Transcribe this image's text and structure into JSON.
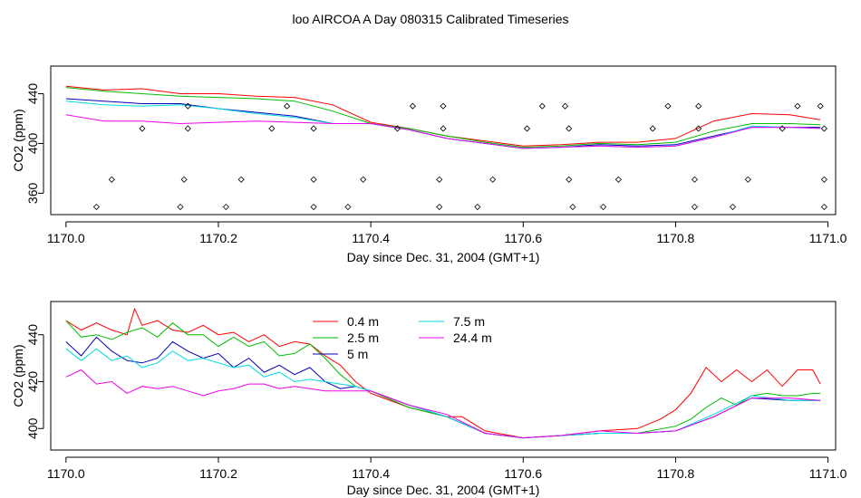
{
  "figure": {
    "title": "loo AIRCOA A  Day 080315  Calibrated Timeseries"
  },
  "chart_data": [
    {
      "type": "line",
      "xlabel": "Day since Dec. 31, 2004 (GMT+1)",
      "ylabel": "CO2 (ppm)",
      "xlim": [
        1169.98,
        1171.01
      ],
      "ylim": [
        345,
        460
      ],
      "xticks": [
        1170.0,
        1170.2,
        1170.4,
        1170.6,
        1170.8,
        1171.0
      ],
      "xtick_labels": [
        "1170.0",
        "1170.2",
        "1170.4",
        "1170.6",
        "1170.8",
        "1171.0"
      ],
      "yticks": [
        360,
        400,
        440
      ],
      "ytick_labels": [
        "360",
        "400",
        "440"
      ],
      "grid": false,
      "series": [
        {
          "color": "#ff0000",
          "x": [
            1170.0,
            1170.05,
            1170.1,
            1170.15,
            1170.2,
            1170.25,
            1170.3,
            1170.35,
            1170.4,
            1170.45,
            1170.5,
            1170.55,
            1170.6,
            1170.65,
            1170.7,
            1170.75,
            1170.8,
            1170.85,
            1170.9,
            1170.95,
            1170.99
          ],
          "y": [
            446,
            443,
            444,
            440,
            440,
            438,
            437,
            431,
            417,
            412,
            406,
            402,
            398,
            399,
            401,
            401,
            404,
            418,
            424,
            423,
            419
          ]
        },
        {
          "color": "#00bb00",
          "x": [
            1170.0,
            1170.05,
            1170.1,
            1170.15,
            1170.2,
            1170.25,
            1170.3,
            1170.35,
            1170.4,
            1170.45,
            1170.5,
            1170.55,
            1170.6,
            1170.65,
            1170.7,
            1170.75,
            1170.8,
            1170.85,
            1170.9,
            1170.95,
            1170.99
          ],
          "y": [
            445,
            442,
            440,
            438,
            437,
            436,
            434,
            426,
            416,
            412,
            406,
            401,
            397,
            398,
            400,
            399,
            401,
            410,
            416,
            416,
            415
          ]
        },
        {
          "color": "#0000bb",
          "x": [
            1170.0,
            1170.05,
            1170.1,
            1170.15,
            1170.2,
            1170.25,
            1170.3,
            1170.35,
            1170.4,
            1170.45,
            1170.5,
            1170.55,
            1170.6,
            1170.65,
            1170.7,
            1170.75,
            1170.8,
            1170.85,
            1170.9,
            1170.95,
            1170.99
          ],
          "y": [
            436,
            434,
            432,
            432,
            428,
            425,
            422,
            416,
            416,
            411,
            404,
            400,
            396,
            397,
            399,
            398,
            399,
            406,
            413,
            413,
            413
          ]
        },
        {
          "color": "#00dddd",
          "x": [
            1170.0,
            1170.05,
            1170.1,
            1170.15,
            1170.2,
            1170.25,
            1170.3,
            1170.35,
            1170.4,
            1170.45,
            1170.5,
            1170.55,
            1170.6,
            1170.65,
            1170.7,
            1170.75,
            1170.8,
            1170.85,
            1170.9,
            1170.95,
            1170.99
          ],
          "y": [
            434,
            431,
            430,
            431,
            428,
            424,
            421,
            416,
            416,
            411,
            404,
            400,
            396,
            397,
            398,
            397,
            398,
            405,
            414,
            413,
            412
          ]
        },
        {
          "color": "#ee00ee",
          "x": [
            1170.0,
            1170.05,
            1170.1,
            1170.15,
            1170.2,
            1170.25,
            1170.3,
            1170.35,
            1170.4,
            1170.45,
            1170.5,
            1170.55,
            1170.6,
            1170.65,
            1170.7,
            1170.75,
            1170.8,
            1170.85,
            1170.9,
            1170.95,
            1170.99
          ],
          "y": [
            423,
            418,
            418,
            416,
            417,
            418,
            417,
            416,
            416,
            411,
            404,
            400,
            396,
            397,
            398,
            397,
            398,
            405,
            413,
            413,
            412
          ]
        }
      ],
      "markers": {
        "style": "open-diamond",
        "points": [
          {
            "x": 1170.04,
            "y": 349
          },
          {
            "x": 1170.06,
            "y": 371
          },
          {
            "x": 1170.1,
            "y": 412
          },
          {
            "x": 1170.15,
            "y": 349
          },
          {
            "x": 1170.155,
            "y": 371
          },
          {
            "x": 1170.16,
            "y": 412
          },
          {
            "x": 1170.16,
            "y": 430
          },
          {
            "x": 1170.21,
            "y": 349
          },
          {
            "x": 1170.23,
            "y": 371
          },
          {
            "x": 1170.27,
            "y": 412
          },
          {
            "x": 1170.29,
            "y": 430
          },
          {
            "x": 1170.325,
            "y": 349
          },
          {
            "x": 1170.325,
            "y": 371
          },
          {
            "x": 1170.325,
            "y": 412
          },
          {
            "x": 1170.37,
            "y": 349
          },
          {
            "x": 1170.39,
            "y": 371
          },
          {
            "x": 1170.435,
            "y": 412
          },
          {
            "x": 1170.455,
            "y": 430
          },
          {
            "x": 1170.49,
            "y": 349
          },
          {
            "x": 1170.49,
            "y": 371
          },
          {
            "x": 1170.495,
            "y": 412
          },
          {
            "x": 1170.495,
            "y": 430
          },
          {
            "x": 1170.54,
            "y": 349
          },
          {
            "x": 1170.56,
            "y": 371
          },
          {
            "x": 1170.605,
            "y": 412
          },
          {
            "x": 1170.625,
            "y": 430
          },
          {
            "x": 1170.655,
            "y": 430
          },
          {
            "x": 1170.66,
            "y": 371
          },
          {
            "x": 1170.66,
            "y": 412
          },
          {
            "x": 1170.665,
            "y": 349
          },
          {
            "x": 1170.705,
            "y": 349
          },
          {
            "x": 1170.725,
            "y": 371
          },
          {
            "x": 1170.77,
            "y": 412
          },
          {
            "x": 1170.79,
            "y": 430
          },
          {
            "x": 1170.825,
            "y": 349
          },
          {
            "x": 1170.825,
            "y": 371
          },
          {
            "x": 1170.83,
            "y": 412
          },
          {
            "x": 1170.83,
            "y": 430
          },
          {
            "x": 1170.875,
            "y": 349
          },
          {
            "x": 1170.895,
            "y": 371
          },
          {
            "x": 1170.94,
            "y": 412
          },
          {
            "x": 1170.96,
            "y": 430
          },
          {
            "x": 1170.99,
            "y": 430
          },
          {
            "x": 1170.995,
            "y": 412
          },
          {
            "x": 1170.995,
            "y": 371
          },
          {
            "x": 1170.995,
            "y": 349
          }
        ]
      }
    },
    {
      "type": "line",
      "xlabel": "Day since Dec. 31, 2004 (GMT+1)",
      "ylabel": "CO2 (ppm)",
      "xlim": [
        1169.98,
        1171.01
      ],
      "ylim": [
        392,
        453
      ],
      "xticks": [
        1170.0,
        1170.2,
        1170.4,
        1170.6,
        1170.8,
        1171.0
      ],
      "xtick_labels": [
        "1170.0",
        "1170.2",
        "1170.4",
        "1170.6",
        "1170.8",
        "1171.0"
      ],
      "yticks": [
        400,
        420,
        440
      ],
      "ytick_labels": [
        "400",
        "420",
        "440"
      ],
      "grid": false,
      "legend": {
        "placement": "top-center",
        "columns": 2
      },
      "series": [
        {
          "name": "0.4 m",
          "color": "#ff0000",
          "x": [
            1170.0,
            1170.02,
            1170.04,
            1170.06,
            1170.08,
            1170.09,
            1170.1,
            1170.12,
            1170.14,
            1170.16,
            1170.18,
            1170.2,
            1170.22,
            1170.24,
            1170.26,
            1170.28,
            1170.3,
            1170.32,
            1170.34,
            1170.36,
            1170.38,
            1170.4,
            1170.45,
            1170.5,
            1170.52,
            1170.55,
            1170.6,
            1170.65,
            1170.7,
            1170.75,
            1170.78,
            1170.8,
            1170.82,
            1170.84,
            1170.86,
            1170.88,
            1170.9,
            1170.92,
            1170.94,
            1170.96,
            1170.98,
            1170.99
          ],
          "y": [
            446,
            442,
            445,
            442,
            440,
            451,
            444,
            446,
            442,
            441,
            444,
            440,
            441,
            437,
            440,
            435,
            437,
            436,
            431,
            427,
            420,
            415,
            409,
            405,
            405,
            399,
            396,
            397,
            399,
            400,
            404,
            408,
            415,
            426,
            420,
            425,
            420,
            425,
            418,
            425,
            425,
            419
          ]
        },
        {
          "name": "2.5 m",
          "color": "#00bb00",
          "x": [
            1170.0,
            1170.02,
            1170.04,
            1170.06,
            1170.08,
            1170.1,
            1170.12,
            1170.14,
            1170.16,
            1170.18,
            1170.2,
            1170.22,
            1170.24,
            1170.26,
            1170.28,
            1170.3,
            1170.32,
            1170.34,
            1170.36,
            1170.38,
            1170.4,
            1170.45,
            1170.5,
            1170.55,
            1170.6,
            1170.65,
            1170.7,
            1170.75,
            1170.8,
            1170.82,
            1170.84,
            1170.86,
            1170.88,
            1170.9,
            1170.92,
            1170.94,
            1170.96,
            1170.98,
            1170.99
          ],
          "y": [
            446,
            439,
            440,
            438,
            441,
            443,
            439,
            445,
            440,
            440,
            435,
            439,
            435,
            437,
            431,
            432,
            436,
            430,
            423,
            418,
            416,
            409,
            405,
            398,
            396,
            397,
            398,
            398,
            401,
            404,
            409,
            413,
            410,
            414,
            415,
            414,
            414,
            415,
            415
          ]
        },
        {
          "name": "5 m",
          "color": "#0000bb",
          "x": [
            1170.0,
            1170.02,
            1170.04,
            1170.06,
            1170.08,
            1170.1,
            1170.12,
            1170.14,
            1170.16,
            1170.18,
            1170.2,
            1170.22,
            1170.24,
            1170.26,
            1170.28,
            1170.3,
            1170.32,
            1170.34,
            1170.36,
            1170.38,
            1170.4,
            1170.45,
            1170.5,
            1170.55,
            1170.6,
            1170.65,
            1170.7,
            1170.75,
            1170.8,
            1170.85,
            1170.9,
            1170.95,
            1170.99
          ],
          "y": [
            437,
            431,
            439,
            433,
            429,
            428,
            430,
            437,
            433,
            430,
            432,
            426,
            430,
            424,
            427,
            423,
            426,
            420,
            417,
            418,
            416,
            410,
            405,
            398,
            396,
            397,
            398,
            398,
            399,
            405,
            413,
            412,
            412
          ]
        },
        {
          "name": "7.5 m",
          "color": "#00dddd",
          "x": [
            1170.0,
            1170.02,
            1170.04,
            1170.06,
            1170.08,
            1170.1,
            1170.12,
            1170.14,
            1170.16,
            1170.18,
            1170.2,
            1170.22,
            1170.24,
            1170.26,
            1170.28,
            1170.3,
            1170.32,
            1170.34,
            1170.36,
            1170.38,
            1170.4,
            1170.45,
            1170.5,
            1170.55,
            1170.6,
            1170.65,
            1170.7,
            1170.75,
            1170.8,
            1170.85,
            1170.9,
            1170.95,
            1170.99
          ],
          "y": [
            434,
            429,
            434,
            429,
            431,
            426,
            428,
            433,
            429,
            430,
            428,
            426,
            427,
            422,
            424,
            420,
            421,
            420,
            419,
            418,
            416,
            410,
            405,
            398,
            396,
            397,
            398,
            398,
            399,
            406,
            414,
            412,
            412
          ]
        },
        {
          "name": "24.4 m",
          "color": "#ee00ee",
          "x": [
            1170.0,
            1170.02,
            1170.04,
            1170.06,
            1170.08,
            1170.1,
            1170.12,
            1170.14,
            1170.16,
            1170.18,
            1170.2,
            1170.22,
            1170.24,
            1170.26,
            1170.28,
            1170.3,
            1170.32,
            1170.34,
            1170.36,
            1170.38,
            1170.4,
            1170.45,
            1170.5,
            1170.55,
            1170.6,
            1170.65,
            1170.7,
            1170.75,
            1170.8,
            1170.85,
            1170.9,
            1170.95,
            1170.99
          ],
          "y": [
            422,
            425,
            419,
            420,
            415,
            418,
            417,
            418,
            416,
            414,
            416,
            417,
            419,
            419,
            417,
            418,
            417,
            416,
            416,
            416,
            416,
            410,
            406,
            398,
            396,
            397,
            399,
            398,
            399,
            405,
            413,
            413,
            412
          ]
        }
      ]
    }
  ]
}
